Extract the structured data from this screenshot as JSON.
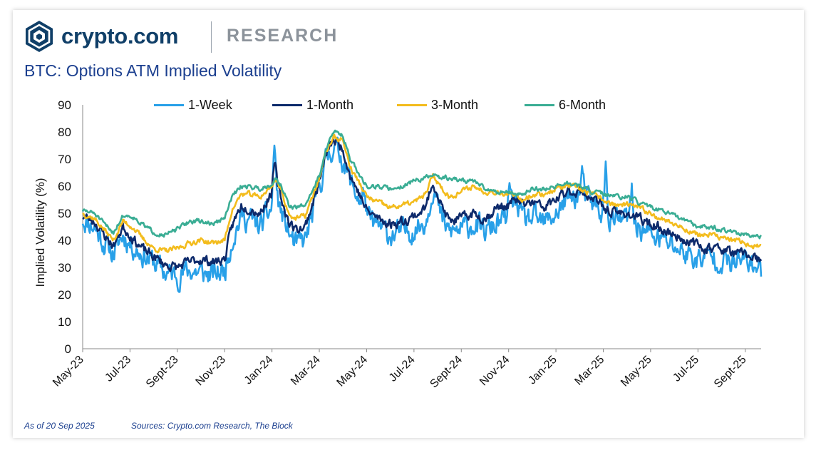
{
  "brand": {
    "name": "crypto.com",
    "section": "RESEARCH",
    "color": "#103f68",
    "section_color": "#8c939b"
  },
  "title": "BTC: Options ATM Implied Volatility",
  "title_color": "#1b3f8f",
  "footer": {
    "as_of": "As of 20 Sep 2025",
    "sources": "Sources: Crypto.com Research, The Block",
    "color": "#1b3f8f"
  },
  "chart_data": {
    "type": "line",
    "title": "BTC: Options ATM Implied Volatility",
    "xlabel": "",
    "ylabel": "Implied Volatility (%)",
    "ylim": [
      0,
      90
    ],
    "yticks": [
      0,
      10,
      20,
      30,
      40,
      50,
      60,
      70,
      80,
      90
    ],
    "xlim": [
      0,
      28.67
    ],
    "x_unit": "months since May-23",
    "grid": false,
    "legend_position": "top",
    "xtick_labels": [
      "May-23",
      "Jul-23",
      "Sept-23",
      "Nov-23",
      "Jan-24",
      "Mar-24",
      "May-24",
      "Jul-24",
      "Sept-24",
      "Nov-24",
      "Jan-25",
      "Mar-25",
      "May-25",
      "Jul-25",
      "Sept-25"
    ],
    "series": [
      {
        "name": "1-Week",
        "color": "#28a0e8",
        "noise": 3.6,
        "seed": 11,
        "spikes": [
          [
            8.1,
            20
          ],
          [
            11.9,
            9
          ],
          [
            18.05,
            12
          ],
          [
            21.1,
            9
          ],
          [
            22.1,
            17
          ],
          [
            23.2,
            11
          ]
        ],
        "x": [
          0,
          0.5,
          0.9,
          1.3,
          1.7,
          2.1,
          2.5,
          3,
          3.5,
          4,
          4.5,
          5,
          5.5,
          6,
          6.3,
          6.7,
          7,
          7.5,
          8,
          8.15,
          8.4,
          8.7,
          9,
          9.4,
          9.8,
          10,
          10.3,
          10.6,
          11,
          11.3,
          11.7,
          12,
          12.5,
          13,
          13.5,
          14,
          14.5,
          14.8,
          15.2,
          15.5,
          16,
          16.5,
          17,
          17.5,
          18,
          18.3,
          18.6,
          19,
          19.5,
          20,
          20.5,
          21,
          21.5,
          22,
          22.5,
          23,
          23.5,
          24,
          24.5,
          25,
          25.5,
          26,
          26.5,
          27,
          27.5,
          28,
          28.3,
          28.67
        ],
        "values": [
          48,
          45,
          39,
          35,
          42,
          38,
          35,
          32,
          28,
          27,
          29,
          28,
          27,
          29,
          40,
          49,
          48,
          45,
          52,
          58,
          50,
          43,
          38,
          40,
          52,
          60,
          70,
          75,
          70,
          62,
          55,
          48,
          45,
          42,
          43,
          44,
          47,
          60,
          47,
          43,
          44,
          46,
          43,
          46,
          48,
          56,
          47,
          48,
          46,
          50,
          55,
          57,
          54,
          50,
          47,
          48,
          45,
          42,
          40,
          38,
          35,
          33,
          34,
          33,
          31,
          33,
          31,
          28
        ]
      },
      {
        "name": "1-Month",
        "color": "#0d2a6b",
        "noise": 1.5,
        "seed": 23,
        "spikes": [
          [
            8.1,
            7
          ]
        ],
        "x": [
          0,
          0.5,
          0.9,
          1.3,
          1.7,
          2.1,
          2.5,
          3,
          3.5,
          4,
          4.5,
          5,
          5.5,
          6,
          6.3,
          6.7,
          7,
          7.5,
          8,
          8.15,
          8.4,
          8.7,
          9,
          9.4,
          9.8,
          10,
          10.3,
          10.6,
          11,
          11.3,
          11.7,
          12,
          12.5,
          13,
          13.5,
          14,
          14.5,
          14.8,
          15.2,
          15.5,
          16,
          16.5,
          17,
          17.5,
          18,
          18.3,
          18.6,
          19,
          19.5,
          20,
          20.5,
          21,
          21.5,
          22,
          22.5,
          23,
          23.5,
          24,
          24.5,
          25,
          25.5,
          26,
          26.5,
          27,
          27.5,
          28,
          28.3,
          28.67
        ],
        "values": [
          49,
          47,
          42,
          38,
          45,
          41,
          37,
          34,
          31,
          30,
          32,
          33,
          32,
          33,
          45,
          53,
          52,
          50,
          58,
          63,
          55,
          47,
          44,
          45,
          56,
          62,
          72,
          77,
          74,
          64,
          57,
          51,
          48,
          46,
          47,
          49,
          52,
          62,
          52,
          47,
          48,
          50,
          48,
          52,
          53,
          55,
          53,
          54,
          52,
          55,
          58,
          58,
          56,
          52,
          50,
          50,
          48,
          46,
          44,
          42,
          40,
          38,
          37,
          37,
          35,
          35,
          34,
          32
        ]
      },
      {
        "name": "3-Month",
        "color": "#f3bc1d",
        "noise": 0.8,
        "seed": 37,
        "spikes": [],
        "x": [
          0,
          0.5,
          0.9,
          1.3,
          1.7,
          2.1,
          2.5,
          3,
          3.5,
          4,
          4.5,
          5,
          5.5,
          6,
          6.3,
          6.7,
          7,
          7.5,
          8,
          8.15,
          8.4,
          8.7,
          9,
          9.4,
          9.8,
          10,
          10.3,
          10.6,
          11,
          11.3,
          11.7,
          12,
          12.5,
          13,
          13.5,
          14,
          14.5,
          14.8,
          15.2,
          15.5,
          16,
          16.5,
          17,
          17.5,
          18,
          18.3,
          18.6,
          19,
          19.5,
          20,
          20.5,
          21,
          21.5,
          22,
          22.5,
          23,
          23.5,
          24,
          24.5,
          25,
          25.5,
          26,
          26.5,
          27,
          27.5,
          28,
          28.3,
          28.67
        ],
        "values": [
          50,
          48,
          44,
          40,
          47,
          45,
          41,
          37,
          36,
          37,
          39,
          40,
          39,
          40,
          51,
          57,
          57,
          56,
          60,
          63,
          58,
          50,
          48,
          49,
          58,
          63,
          73,
          78,
          77,
          67,
          61,
          56,
          54,
          52,
          53,
          54,
          57,
          64,
          59,
          56,
          58,
          60,
          58,
          58,
          57,
          56,
          55,
          57,
          57,
          59,
          60,
          59,
          57,
          55,
          53,
          53,
          52,
          50,
          48,
          46,
          44,
          42,
          42,
          41,
          40,
          39,
          38,
          37.5
        ]
      },
      {
        "name": "6-Month",
        "color": "#3aad94",
        "noise": 0.7,
        "seed": 51,
        "spikes": [],
        "x": [
          0,
          0.5,
          0.9,
          1.3,
          1.7,
          2.1,
          2.5,
          3,
          3.5,
          4,
          4.5,
          5,
          5.5,
          6,
          6.3,
          6.7,
          7,
          7.5,
          8,
          8.15,
          8.4,
          8.7,
          9,
          9.4,
          9.8,
          10,
          10.3,
          10.6,
          11,
          11.3,
          11.7,
          12,
          12.5,
          13,
          13.5,
          14,
          14.5,
          14.8,
          15.2,
          15.5,
          16,
          16.5,
          17,
          17.5,
          18,
          18.3,
          18.6,
          19,
          19.5,
          20,
          20.5,
          21,
          21.5,
          22,
          22.5,
          23,
          23.5,
          24,
          24.5,
          25,
          25.5,
          26,
          26.5,
          27,
          27.5,
          28,
          28.3,
          28.67
        ],
        "values": [
          51,
          50,
          46,
          43,
          49,
          49,
          46,
          43,
          42,
          44,
          47,
          47,
          46,
          48,
          56,
          60,
          60,
          59,
          61,
          63,
          60,
          53,
          52,
          53,
          60,
          64,
          74,
          80,
          79,
          70,
          64,
          60,
          60,
          59,
          60,
          62,
          63,
          64,
          63,
          63,
          62,
          62,
          59,
          58,
          58,
          57,
          57,
          59,
          59,
          60,
          61,
          60,
          58,
          57,
          56,
          56,
          54,
          52,
          51,
          49,
          47,
          45,
          45,
          44,
          43,
          42,
          41,
          41
        ]
      }
    ]
  }
}
